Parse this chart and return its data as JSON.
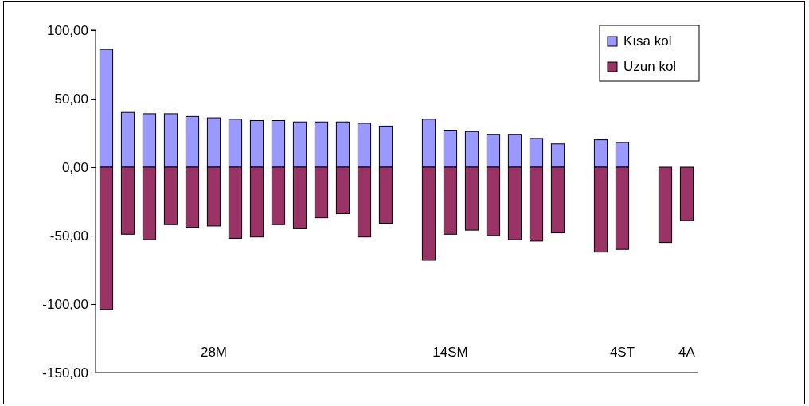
{
  "chart_data": {
    "type": "bar",
    "stacked": true,
    "categories": [
      null,
      null,
      null,
      null,
      null,
      "28M",
      null,
      null,
      null,
      null,
      null,
      null,
      null,
      null,
      null,
      null,
      "14SM",
      null,
      null,
      null,
      null,
      null,
      null,
      null,
      "4ST",
      null,
      null,
      "4A"
    ],
    "series": [
      {
        "name": "Kısa kol",
        "color": "#9999ff",
        "values": [
          86,
          40,
          39,
          39,
          37,
          36,
          35,
          34,
          34,
          33,
          33,
          33,
          32,
          30,
          null,
          35,
          27,
          26,
          24,
          24,
          21,
          17,
          null,
          20,
          18,
          null,
          null,
          null
        ]
      },
      {
        "name": "Uzun kol",
        "color": "#993366",
        "values": [
          -104,
          -49,
          -53,
          -42,
          -44,
          -43,
          -52,
          -51,
          -42,
          -45,
          -37,
          -34,
          -51,
          -41,
          null,
          -68,
          -49,
          -46,
          -50,
          -53,
          -54,
          -48,
          null,
          -62,
          -60,
          null,
          -55,
          -39
        ]
      }
    ],
    "ylim": [
      -150,
      100
    ],
    "yticks": [
      {
        "value": -150,
        "label": "-150,00"
      },
      {
        "value": -100,
        "label": "-100,00"
      },
      {
        "value": -50,
        "label": "-50,00"
      },
      {
        "value": 0,
        "label": "0,00"
      },
      {
        "value": 50,
        "label": "50,00"
      },
      {
        "value": 100,
        "label": "100,00"
      }
    ],
    "grid": false,
    "legend": "top right"
  }
}
